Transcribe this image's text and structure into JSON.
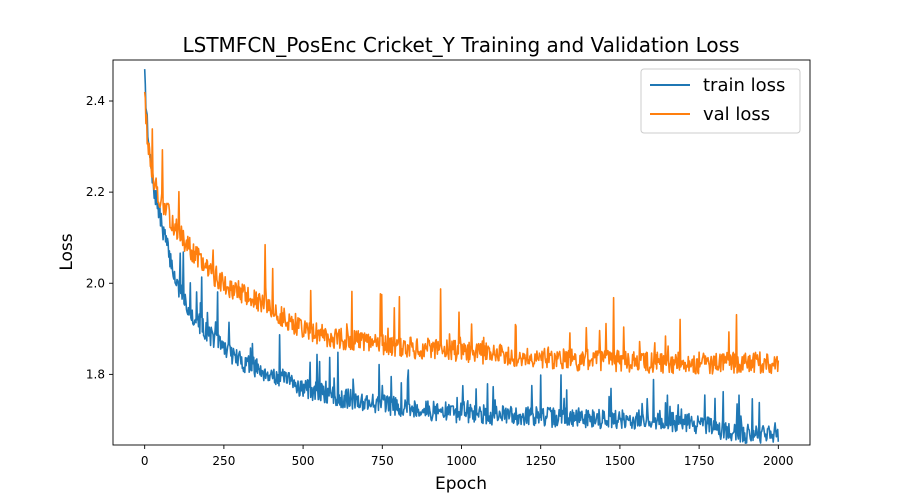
{
  "chart_data": {
    "type": "line",
    "title": "LSTMFCN_PosEnc Cricket_Y Training and Validation Loss",
    "xlabel": "Epoch",
    "ylabel": "Loss",
    "xlim": [
      -100,
      2100
    ],
    "ylim": [
      1.645,
      2.49
    ],
    "xticks": [
      0,
      250,
      500,
      750,
      1000,
      1250,
      1500,
      1750,
      2000
    ],
    "yticks": [
      1.8,
      2.0,
      2.2,
      2.4
    ],
    "grid": false,
    "legend_position": "top-right",
    "series": [
      {
        "name": "train loss",
        "color": "#1f77b4",
        "baseline": {
          "x": [
            0,
            10,
            25,
            50,
            75,
            100,
            150,
            200,
            250,
            300,
            400,
            500,
            600,
            700,
            800,
            900,
            1000,
            1100,
            1200,
            1300,
            1400,
            1500,
            1600,
            1700,
            1750,
            1800,
            1900,
            2000
          ],
          "y": [
            2.46,
            2.32,
            2.22,
            2.14,
            2.07,
            2.0,
            1.93,
            1.89,
            1.86,
            1.83,
            1.8,
            1.77,
            1.75,
            1.74,
            1.73,
            1.72,
            1.715,
            1.71,
            1.71,
            1.705,
            1.705,
            1.7,
            1.7,
            1.695,
            1.69,
            1.68,
            1.67,
            1.665
          ]
        },
        "noise": 0.022,
        "spike_prob": 0.06,
        "spike_max": 0.09,
        "seed": 7
      },
      {
        "name": "val loss",
        "color": "#ff7f0e",
        "baseline": {
          "x": [
            0,
            10,
            25,
            50,
            75,
            100,
            150,
            200,
            250,
            300,
            400,
            500,
            600,
            700,
            800,
            900,
            1000,
            1100,
            1200,
            1300,
            1400,
            1500,
            1600,
            1700,
            1800,
            1900,
            2000
          ],
          "y": [
            2.42,
            2.3,
            2.24,
            2.18,
            2.15,
            2.12,
            2.07,
            2.03,
            2.0,
            1.98,
            1.94,
            1.9,
            1.88,
            1.87,
            1.86,
            1.855,
            1.85,
            1.845,
            1.84,
            1.835,
            1.83,
            1.83,
            1.825,
            1.825,
            1.825,
            1.825,
            1.825
          ]
        },
        "noise": 0.024,
        "spike_prob": 0.05,
        "spike_max": 0.12,
        "seed": 13
      }
    ]
  }
}
